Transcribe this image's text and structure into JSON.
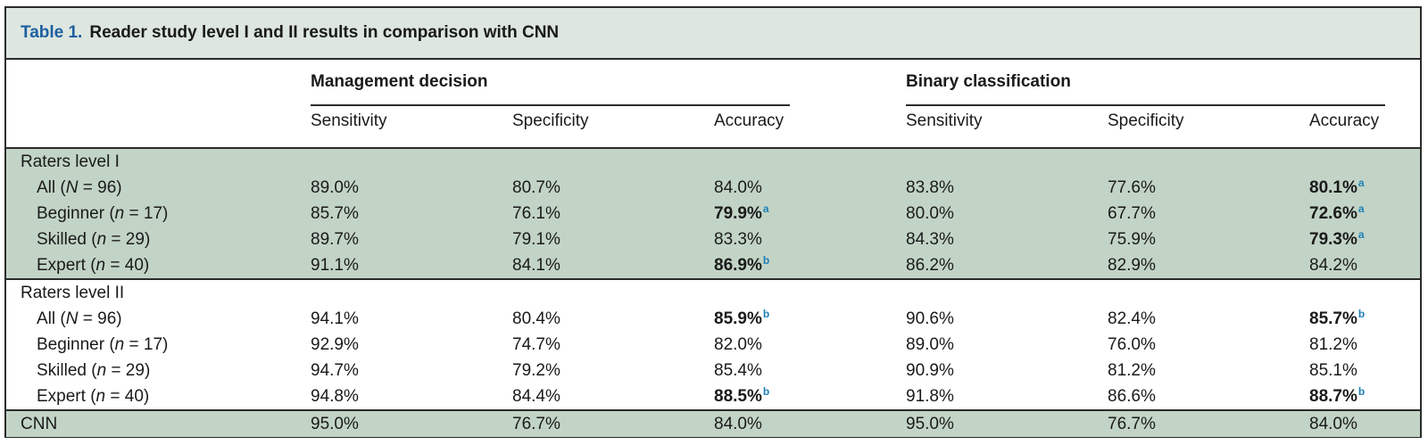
{
  "table": {
    "label": "Table 1.",
    "title": "Reader study level I and II results in comparison with CNN",
    "groups": [
      "Management decision",
      "Binary classification"
    ],
    "columns": [
      "Sensitivity",
      "Specificity",
      "Accuracy",
      "Sensitivity",
      "Specificity",
      "Accuracy"
    ],
    "sections": [
      {
        "heading": "Raters level I",
        "shaded": true,
        "rows": [
          {
            "label_pre": "All (",
            "label_var": "N",
            "label_post": " = 96)",
            "cells": [
              {
                "v": "89.0%"
              },
              {
                "v": "80.7%"
              },
              {
                "v": "84.0%"
              },
              {
                "v": "83.8%"
              },
              {
                "v": "77.6%"
              },
              {
                "v": "80.1%",
                "bold": true,
                "sup": "a"
              }
            ]
          },
          {
            "label_pre": "Beginner (",
            "label_var": "n",
            "label_post": " = 17)",
            "cells": [
              {
                "v": "85.7%"
              },
              {
                "v": "76.1%"
              },
              {
                "v": "79.9%",
                "bold": true,
                "sup": "a"
              },
              {
                "v": "80.0%"
              },
              {
                "v": "67.7%"
              },
              {
                "v": "72.6%",
                "bold": true,
                "sup": "a"
              }
            ]
          },
          {
            "label_pre": "Skilled (",
            "label_var": "n",
            "label_post": " = 29)",
            "cells": [
              {
                "v": "89.7%"
              },
              {
                "v": "79.1%"
              },
              {
                "v": "83.3%"
              },
              {
                "v": "84.3%"
              },
              {
                "v": "75.9%"
              },
              {
                "v": "79.3%",
                "bold": true,
                "sup": "a"
              }
            ]
          },
          {
            "label_pre": "Expert (",
            "label_var": "n",
            "label_post": " = 40)",
            "cells": [
              {
                "v": "91.1%"
              },
              {
                "v": "84.1%"
              },
              {
                "v": "86.9%",
                "bold": true,
                "sup": "b"
              },
              {
                "v": "86.2%"
              },
              {
                "v": "82.9%"
              },
              {
                "v": "84.2%"
              }
            ]
          }
        ]
      },
      {
        "heading": "Raters level II",
        "shaded": false,
        "rows": [
          {
            "label_pre": "All (",
            "label_var": "N",
            "label_post": " = 96)",
            "cells": [
              {
                "v": "94.1%"
              },
              {
                "v": "80.4%"
              },
              {
                "v": "85.9%",
                "bold": true,
                "sup": "b"
              },
              {
                "v": "90.6%"
              },
              {
                "v": "82.4%"
              },
              {
                "v": "85.7%",
                "bold": true,
                "sup": "b"
              }
            ]
          },
          {
            "label_pre": "Beginner (",
            "label_var": "n",
            "label_post": " = 17)",
            "cells": [
              {
                "v": "92.9%"
              },
              {
                "v": "74.7%"
              },
              {
                "v": "82.0%"
              },
              {
                "v": "89.0%"
              },
              {
                "v": "76.0%"
              },
              {
                "v": "81.2%"
              }
            ]
          },
          {
            "label_pre": "Skilled (",
            "label_var": "n",
            "label_post": " = 29)",
            "cells": [
              {
                "v": "94.7%"
              },
              {
                "v": "79.2%"
              },
              {
                "v": "85.4%"
              },
              {
                "v": "90.9%"
              },
              {
                "v": "81.2%"
              },
              {
                "v": "85.1%"
              }
            ]
          },
          {
            "label_pre": "Expert (",
            "label_var": "n",
            "label_post": " = 40)",
            "cells": [
              {
                "v": "94.8%"
              },
              {
                "v": "84.4%"
              },
              {
                "v": "88.5%",
                "bold": true,
                "sup": "b"
              },
              {
                "v": "91.8%"
              },
              {
                "v": "86.6%"
              },
              {
                "v": "88.7%",
                "bold": true,
                "sup": "b"
              }
            ]
          }
        ]
      }
    ],
    "cnn_row": {
      "label": "CNN",
      "cells": [
        {
          "v": "95.0%"
        },
        {
          "v": "76.7%"
        },
        {
          "v": "84.0%"
        },
        {
          "v": "95.0%"
        },
        {
          "v": "76.7%"
        },
        {
          "v": "84.0%"
        }
      ]
    },
    "colors": {
      "title_bg": "#dde6df",
      "shade": "#c2d4c6",
      "label_blue": "#1d5fa0",
      "sup_blue": "#1d7fb6"
    }
  }
}
